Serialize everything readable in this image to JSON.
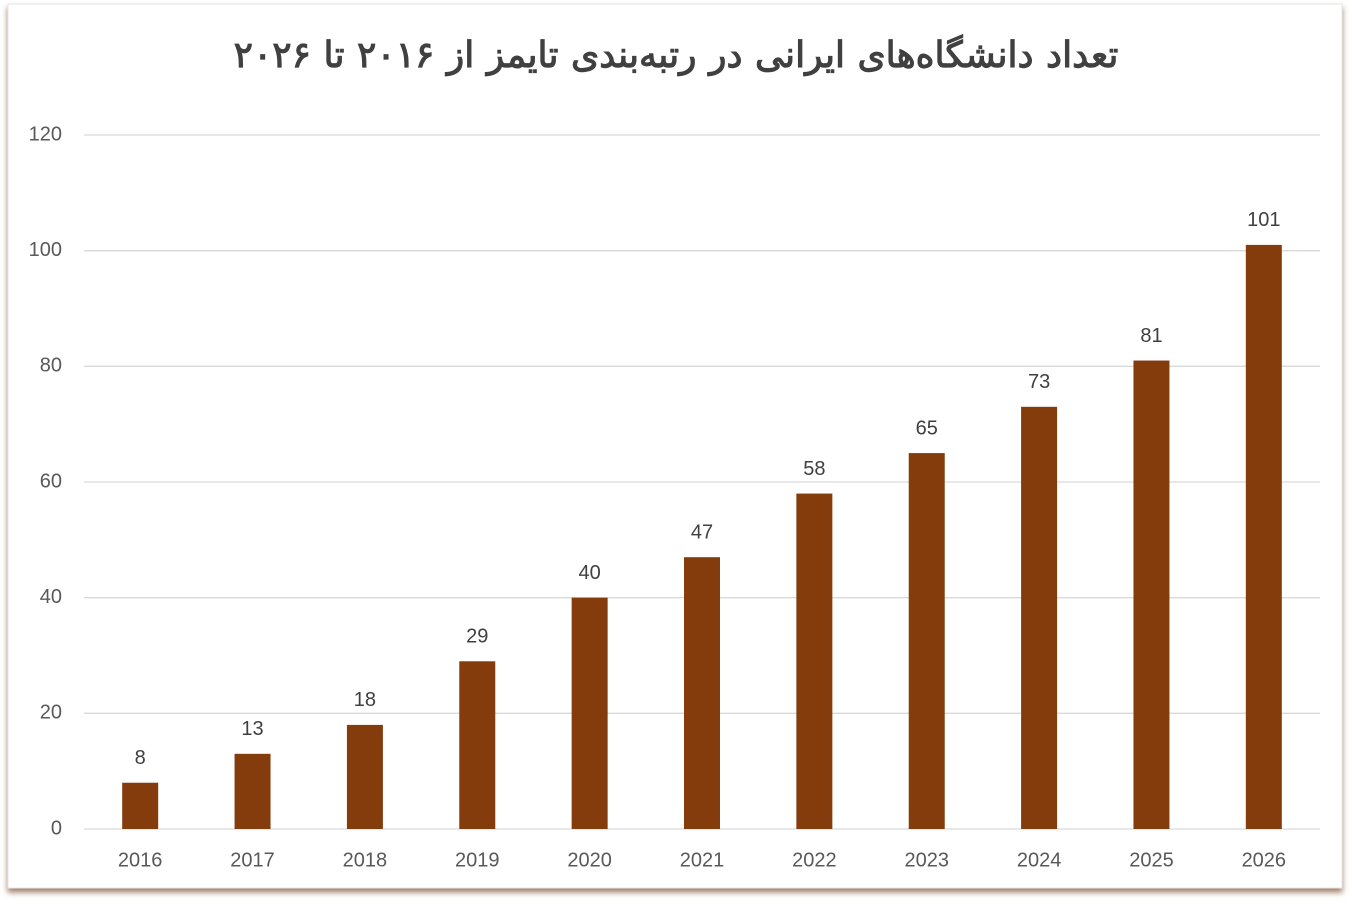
{
  "chart_data": {
    "type": "bar",
    "title": "تعداد دانشگاه‌های ایرانی در رتبه‌بندی تایمز از ۲۰۱۶ تا ۲۰۲۶",
    "categories": [
      "2016",
      "2017",
      "2018",
      "2019",
      "2020",
      "2021",
      "2022",
      "2023",
      "2024",
      "2025",
      "2026"
    ],
    "values": [
      8,
      13,
      18,
      29,
      40,
      47,
      58,
      65,
      73,
      81,
      101
    ],
    "color": "#843c0c",
    "ylim": [
      0,
      120
    ],
    "yticks": [
      0,
      20,
      40,
      60,
      80,
      100,
      120
    ],
    "grid": true,
    "data_labels": true
  }
}
